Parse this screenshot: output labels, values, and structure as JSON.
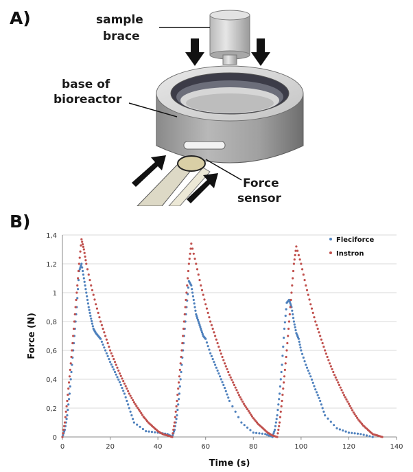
{
  "panel_a": {
    "label": "A)",
    "callouts": {
      "sample_brace_line1": "sample",
      "sample_brace_line2": "brace",
      "base_line1": "base of",
      "base_line2": "bioreactor",
      "force_line1": "Force",
      "force_line2": "sensor"
    }
  },
  "panel_b": {
    "label": "B)"
  },
  "colors": {
    "fleciforce": "#4f81bd",
    "instron": "#c0504d",
    "grid": "#d9d9d9",
    "device_body": "#9c9c9c",
    "arrow": "#111111"
  },
  "chart_data": {
    "type": "scatter",
    "title": "",
    "xlabel": "Time (s)",
    "ylabel": "Force (N)",
    "xlim": [
      0,
      140
    ],
    "ylim": [
      0,
      1.4
    ],
    "x_ticks": [
      "0",
      "20",
      "40",
      "60",
      "80",
      "100",
      "120",
      "140"
    ],
    "y_ticks": [
      "0",
      "0,2",
      "0,4",
      "0,6",
      "0,8",
      "1",
      "1,2",
      "1,4"
    ],
    "grid": true,
    "legend_position": "top-right",
    "series": [
      {
        "name": "Fleciforce",
        "x": [
          0,
          1,
          2,
          3,
          4,
          5,
          6,
          7,
          8,
          9,
          10,
          11,
          12,
          13,
          14,
          15,
          16,
          18,
          20,
          22,
          24,
          26,
          28,
          30,
          35,
          40,
          44,
          46,
          47,
          48,
          49,
          50,
          51,
          52,
          53,
          54,
          55,
          56,
          57,
          58,
          59,
          60,
          62,
          64,
          66,
          68,
          70,
          75,
          80,
          85,
          88,
          89,
          90,
          91,
          92,
          93,
          94,
          95,
          96,
          97,
          98,
          99,
          100,
          102,
          104,
          106,
          108,
          110,
          115,
          120,
          125,
          130
        ],
        "y": [
          0,
          0.05,
          0.15,
          0.3,
          0.5,
          0.7,
          0.9,
          1.15,
          1.2,
          1.1,
          1.0,
          0.9,
          0.82,
          0.75,
          0.72,
          0.7,
          0.68,
          0.6,
          0.52,
          0.45,
          0.38,
          0.3,
          0.2,
          0.1,
          0.04,
          0.03,
          0.02,
          0.0,
          0.05,
          0.15,
          0.3,
          0.5,
          0.7,
          0.9,
          1.08,
          1.05,
          0.95,
          0.85,
          0.8,
          0.75,
          0.7,
          0.68,
          0.58,
          0.5,
          0.42,
          0.34,
          0.25,
          0.1,
          0.03,
          0.02,
          0.0,
          0.05,
          0.15,
          0.3,
          0.5,
          0.75,
          0.93,
          0.95,
          0.9,
          0.8,
          0.72,
          0.68,
          0.6,
          0.5,
          0.42,
          0.33,
          0.25,
          0.15,
          0.06,
          0.03,
          0.02,
          0.0
        ]
      },
      {
        "name": "Instron",
        "x": [
          0,
          1,
          2,
          3,
          4,
          5,
          6,
          7,
          8,
          9,
          10,
          12,
          14,
          16,
          18,
          20,
          22,
          24,
          26,
          28,
          30,
          32,
          34,
          36,
          38,
          40,
          42,
          44,
          46,
          47,
          48,
          49,
          50,
          51,
          52,
          53,
          54,
          56,
          58,
          60,
          62,
          64,
          66,
          68,
          70,
          72,
          74,
          76,
          78,
          80,
          82,
          84,
          86,
          88,
          90,
          91,
          92,
          93,
          94,
          95,
          96,
          97,
          98,
          100,
          102,
          104,
          106,
          108,
          110,
          112,
          114,
          116,
          118,
          120,
          122,
          124,
          126,
          128,
          130,
          132,
          134
        ],
        "y": [
          0,
          0.1,
          0.25,
          0.42,
          0.6,
          0.8,
          1.0,
          1.2,
          1.37,
          1.3,
          1.2,
          1.05,
          0.92,
          0.8,
          0.7,
          0.6,
          0.52,
          0.44,
          0.37,
          0.3,
          0.24,
          0.19,
          0.14,
          0.1,
          0.07,
          0.04,
          0.02,
          0.01,
          0.0,
          0.1,
          0.25,
          0.42,
          0.6,
          0.8,
          1.0,
          1.2,
          1.34,
          1.2,
          1.05,
          0.92,
          0.8,
          0.7,
          0.6,
          0.51,
          0.43,
          0.36,
          0.29,
          0.23,
          0.18,
          0.13,
          0.09,
          0.06,
          0.03,
          0.01,
          0.0,
          0.1,
          0.25,
          0.42,
          0.6,
          0.8,
          1.0,
          1.2,
          1.32,
          1.2,
          1.05,
          0.92,
          0.8,
          0.7,
          0.6,
          0.51,
          0.43,
          0.36,
          0.29,
          0.23,
          0.17,
          0.12,
          0.08,
          0.05,
          0.02,
          0.01,
          0.0
        ]
      }
    ]
  }
}
